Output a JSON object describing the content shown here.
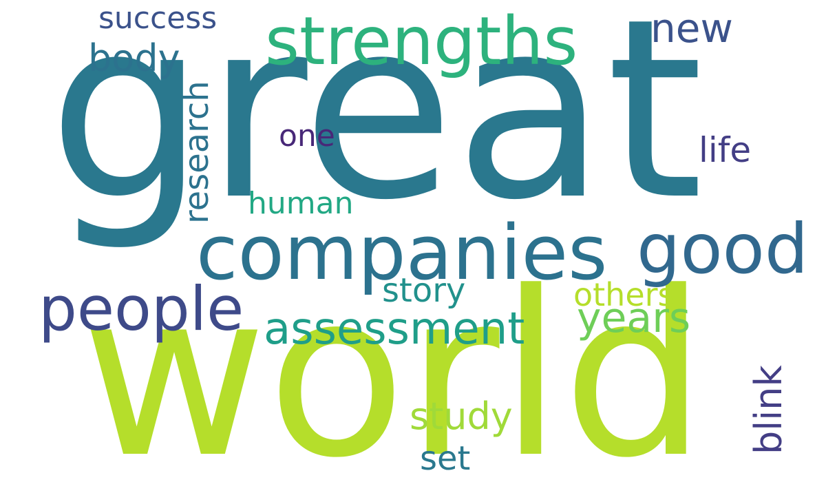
{
  "words": [
    {
      "text": "great",
      "color": "#2a788e"
    },
    {
      "text": "world",
      "color": "#b5de2b"
    },
    {
      "text": "strengths",
      "color": "#2db27d"
    },
    {
      "text": "companies",
      "color": "#2c728e"
    },
    {
      "text": "good",
      "color": "#31688e"
    },
    {
      "text": "people",
      "color": "#3e4a89"
    },
    {
      "text": "assessment",
      "color": "#1f9e89"
    },
    {
      "text": "years",
      "color": "#6ece58"
    },
    {
      "text": "success",
      "color": "#3b528b"
    },
    {
      "text": "new",
      "color": "#3b528b"
    },
    {
      "text": "body",
      "color": "#2c728e"
    },
    {
      "text": "research",
      "color": "#2c728e"
    },
    {
      "text": "one",
      "color": "#482878"
    },
    {
      "text": "life",
      "color": "#433e85"
    },
    {
      "text": "human",
      "color": "#22a884"
    },
    {
      "text": "story",
      "color": "#21918c"
    },
    {
      "text": "others",
      "color": "#b5de2b"
    },
    {
      "text": "study",
      "color": "#a0da39"
    },
    {
      "text": "set",
      "color": "#2a788e"
    },
    {
      "text": "blink",
      "color": "#433e85"
    }
  ]
}
